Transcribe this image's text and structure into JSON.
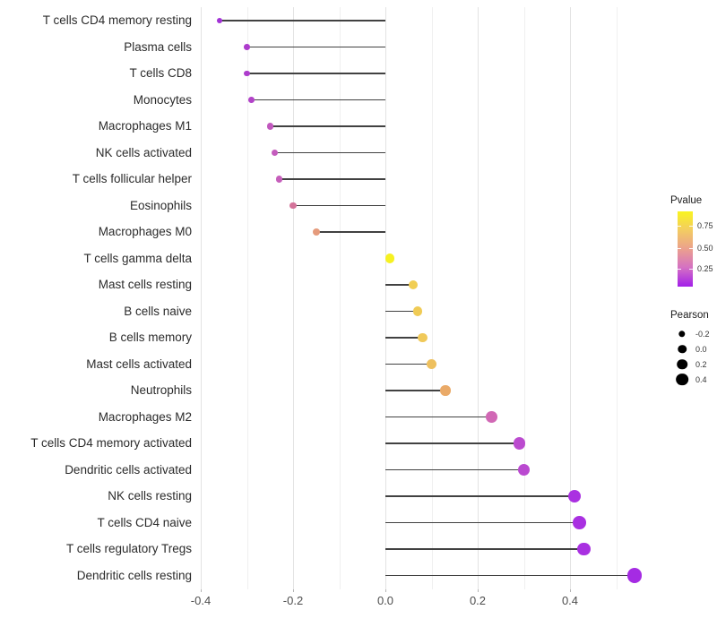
{
  "chart_data": {
    "type": "lollipop",
    "orientation": "horizontal",
    "title": "",
    "xlabel": "",
    "ylabel": "",
    "xlim": [
      -0.45,
      0.565
    ],
    "x_major_ticks": [
      -0.4,
      -0.2,
      0.0,
      0.2,
      0.4
    ],
    "x_major_tick_labels": [
      "-0.4",
      "-0.2",
      "0.0",
      "0.2",
      "0.4"
    ],
    "x_minor_ticks": [
      -0.3,
      -0.1,
      0.1,
      0.3,
      0.5
    ],
    "grid": "vertical major+minor, light gray on white",
    "baseline_value": 0.0,
    "stem_color": "#414141",
    "points": [
      {
        "label": "T cells CD4 memory resting",
        "pearson": -0.36,
        "color": "#A233D6"
      },
      {
        "label": "Plasma cells",
        "pearson": -0.3,
        "color": "#AD3CCC"
      },
      {
        "label": "T cells CD8",
        "pearson": -0.3,
        "color": "#AD3CCC"
      },
      {
        "label": "Monocytes",
        "pearson": -0.29,
        "color": "#B243C8"
      },
      {
        "label": "Macrophages M1",
        "pearson": -0.25,
        "color": "#C158BE"
      },
      {
        "label": "NK cells activated",
        "pearson": -0.24,
        "color": "#C45CBD"
      },
      {
        "label": "T cells follicular helper",
        "pearson": -0.23,
        "color": "#C65FBB"
      },
      {
        "label": "Eosinophils",
        "pearson": -0.2,
        "color": "#D4739A"
      },
      {
        "label": "Macrophages M0",
        "pearson": -0.15,
        "color": "#E59B7C"
      },
      {
        "label": "T cells gamma delta",
        "pearson": 0.01,
        "color": "#F6F121"
      },
      {
        "label": "Mast cells resting",
        "pearson": 0.06,
        "color": "#F1CE53"
      },
      {
        "label": "B cells naive",
        "pearson": 0.07,
        "color": "#F0CB55"
      },
      {
        "label": "B cells memory",
        "pearson": 0.08,
        "color": "#F0C95A"
      },
      {
        "label": "Mast cells activated",
        "pearson": 0.1,
        "color": "#EEC05E"
      },
      {
        "label": "Neutrophils",
        "pearson": 0.13,
        "color": "#EAAA68"
      },
      {
        "label": "Macrophages M2",
        "pearson": 0.23,
        "color": "#D168B5"
      },
      {
        "label": "T cells CD4 memory activated",
        "pearson": 0.29,
        "color": "#BB4BCF"
      },
      {
        "label": "Dendritic cells activated",
        "pearson": 0.3,
        "color": "#BA49D0"
      },
      {
        "label": "NK cells resting",
        "pearson": 0.41,
        "color": "#AA30E1"
      },
      {
        "label": "T cells CD4 naive",
        "pearson": 0.42,
        "color": "#A930E1"
      },
      {
        "label": "T cells regulatory  Tregs",
        "pearson": 0.43,
        "color": "#A930E1"
      },
      {
        "label": "Dendritic cells resting",
        "pearson": 0.54,
        "color": "#A52BE3"
      }
    ]
  },
  "legend": {
    "pvalue": {
      "title": "Pvalue",
      "tick_labels": [
        "0.75",
        "0.50",
        "0.25"
      ],
      "tick_fractions_from_top": [
        0.19,
        0.488,
        0.762
      ],
      "gradient_top_to_bottom": [
        "#F9F420",
        "#F3CC62",
        "#EBA08E",
        "#D470C4",
        "#A21FE9"
      ]
    },
    "pearson": {
      "title": "Pearson",
      "items": [
        {
          "label": "-0.2",
          "value": -0.2
        },
        {
          "label": "0.0",
          "value": 0.0
        },
        {
          "label": "0.2",
          "value": 0.2
        },
        {
          "label": "0.4",
          "value": 0.4
        }
      ],
      "dot_color": "#000000"
    }
  }
}
